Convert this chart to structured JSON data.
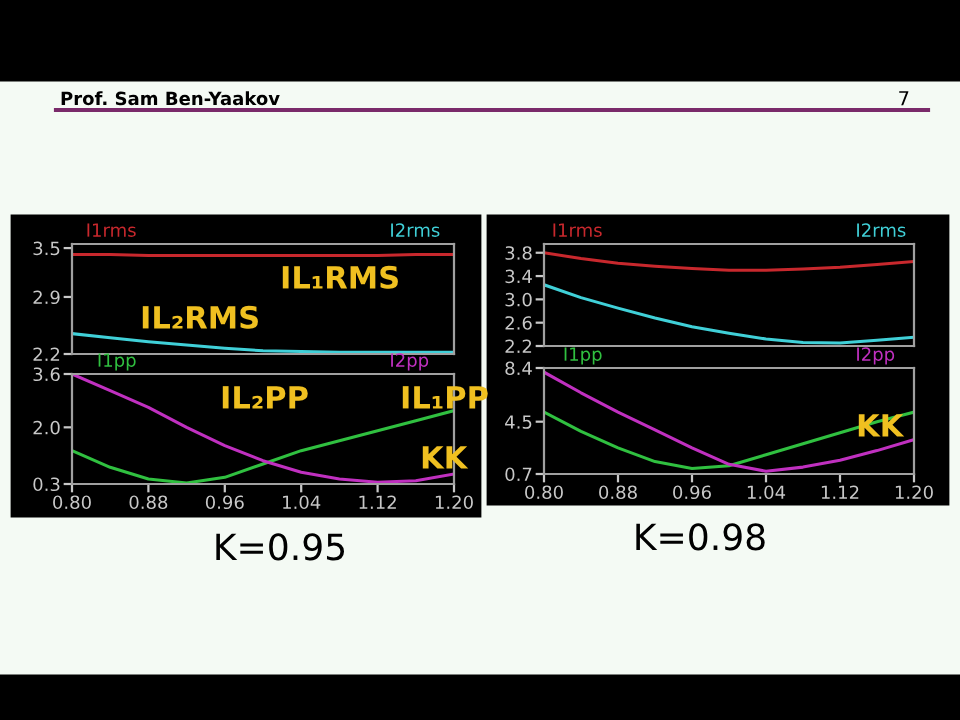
{
  "chart_data": [
    {
      "type": "line",
      "x": [
        0.8,
        0.84,
        0.88,
        0.92,
        0.96,
        1.0,
        1.04,
        1.08,
        1.12,
        1.16,
        1.2
      ],
      "ylim": [
        2.2,
        3.55
      ],
      "yticks": [
        2.2,
        2.9,
        3.5
      ],
      "xlim": [
        0.8,
        1.2
      ],
      "tick_labels": "y",
      "legend": "top",
      "grid": false,
      "series": [
        {
          "name": "I1rms",
          "color": "#c8282d",
          "values": [
            3.42,
            3.42,
            3.41,
            3.41,
            3.41,
            3.41,
            3.41,
            3.41,
            3.41,
            3.42,
            3.42
          ]
        },
        {
          "name": "I2rms",
          "color": "#40d0d8",
          "values": [
            2.45,
            2.4,
            2.35,
            2.31,
            2.27,
            2.24,
            2.23,
            2.22,
            2.22,
            2.22,
            2.22
          ]
        }
      ],
      "annotations": [
        "Prof. Sam Ben-Yaakov",
        "7",
        "IL₁RMS",
        "IL₂RMS"
      ]
    },
    {
      "type": "line",
      "x": [
        0.8,
        0.84,
        0.88,
        0.92,
        0.96,
        1.0,
        1.04,
        1.08,
        1.12,
        1.16,
        1.2
      ],
      "ylim": [
        0.3,
        3.6
      ],
      "yticks": [
        0.3,
        {
          "value": 2,
          "label": "2.0"
        },
        3.6
      ],
      "xlim": [
        0.8,
        1.2
      ],
      "xticks": [
        {
          "value": 0.8,
          "label": "0.80"
        },
        {
          "value": 0.88,
          "label": "0.88"
        },
        {
          "value": 0.96,
          "label": "0.96"
        },
        {
          "value": 1.04,
          "label": "1.04"
        },
        {
          "value": 1.12,
          "label": "1.12"
        },
        {
          "value": 1.2,
          "label": "1.20"
        }
      ],
      "legend": "top",
      "grid": false,
      "series": [
        {
          "name": "I1pp",
          "color": "#30c040",
          "values": [
            1.3,
            0.8,
            0.45,
            0.33,
            0.5,
            0.9,
            1.3,
            1.6,
            1.9,
            2.2,
            2.5
          ]
        },
        {
          "name": "I2pp",
          "color": "#c030c0",
          "values": [
            3.6,
            3.1,
            2.6,
            2.0,
            1.45,
            1.0,
            0.65,
            0.45,
            0.35,
            0.4,
            0.6
          ]
        }
      ],
      "annotations": [
        "IL₂PP",
        "IL₁PP",
        "KK",
        "K=0.95"
      ]
    },
    {
      "type": "line",
      "x": [
        0.8,
        0.84,
        0.88,
        0.92,
        0.96,
        1.0,
        1.04,
        1.08,
        1.12,
        1.16,
        1.2
      ],
      "ylim": [
        2.2,
        3.95
      ],
      "yticks": [
        2.2,
        2.6,
        {
          "value": 3,
          "label": "3.0"
        },
        3.4,
        3.8
      ],
      "xlim": [
        0.8,
        1.2
      ],
      "tick_labels": "y",
      "legend": "top",
      "grid": false,
      "series": [
        {
          "name": "I1rms",
          "color": "#c8282d",
          "values": [
            3.8,
            3.7,
            3.62,
            3.57,
            3.53,
            3.5,
            3.5,
            3.52,
            3.55,
            3.6,
            3.65
          ]
        },
        {
          "name": "I2rms",
          "color": "#40d0d8",
          "values": [
            3.25,
            3.03,
            2.85,
            2.68,
            2.53,
            2.42,
            2.32,
            2.26,
            2.25,
            2.3,
            2.35
          ]
        }
      ]
    },
    {
      "type": "line",
      "x": [
        0.8,
        0.84,
        0.88,
        0.92,
        0.96,
        1.0,
        1.04,
        1.08,
        1.12,
        1.16,
        1.2
      ],
      "ylim": [
        0.7,
        8.4
      ],
      "yticks": [
        0.7,
        4.5,
        8.4
      ],
      "xlim": [
        0.8,
        1.2
      ],
      "xticks": [
        {
          "value": 0.8,
          "label": "0.80"
        },
        {
          "value": 0.88,
          "label": "0.88"
        },
        {
          "value": 0.96,
          "label": "0.96"
        },
        {
          "value": 1.04,
          "label": "1.04"
        },
        {
          "value": 1.12,
          "label": "1.12"
        },
        {
          "value": 1.2,
          "label": "1.20"
        }
      ],
      "legend": "top",
      "grid": false,
      "series": [
        {
          "name": "I1pp",
          "color": "#30c040",
          "values": [
            5.2,
            3.8,
            2.6,
            1.6,
            1.1,
            1.3,
            2.1,
            2.9,
            3.7,
            4.5,
            5.2
          ]
        },
        {
          "name": "I2pp",
          "color": "#c030c0",
          "values": [
            8.1,
            6.6,
            5.2,
            3.9,
            2.6,
            1.4,
            0.9,
            1.2,
            1.7,
            2.4,
            3.2
          ]
        }
      ],
      "annotations": [
        "KK",
        "K=0.98"
      ]
    }
  ]
}
